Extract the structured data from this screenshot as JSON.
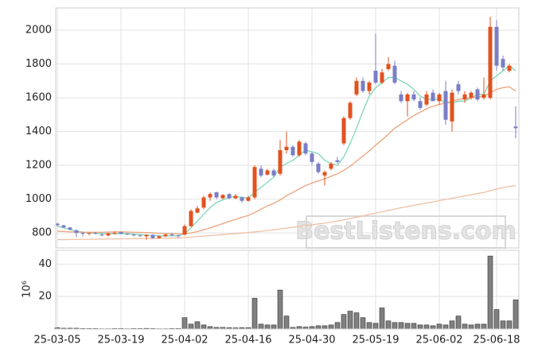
{
  "chart_data": {
    "type": "candlestick",
    "watermark": "BestListens.com",
    "categories": [
      "25-03-05",
      null,
      null,
      null,
      null,
      null,
      null,
      null,
      null,
      null,
      "25-03-19",
      null,
      null,
      null,
      null,
      null,
      null,
      null,
      null,
      null,
      "25-04-02",
      null,
      null,
      null,
      null,
      null,
      null,
      null,
      null,
      null,
      "25-04-16",
      null,
      null,
      null,
      null,
      null,
      null,
      null,
      null,
      null,
      "25-04-30",
      null,
      null,
      null,
      null,
      null,
      null,
      null,
      null,
      null,
      "25-05-19",
      null,
      null,
      null,
      null,
      null,
      null,
      null,
      null,
      null,
      "25-06-02",
      null,
      null,
      null,
      null,
      null,
      null,
      null,
      null,
      "25-06-18",
      null,
      null,
      null
    ],
    "open": [
      855,
      845,
      832,
      815,
      800,
      795,
      800,
      790,
      785,
      798,
      805,
      795,
      790,
      785,
      780,
      788,
      770,
      780,
      790,
      785,
      790,
      840,
      920,
      950,
      1010,
      1040,
      1005,
      1030,
      1005,
      1010,
      990,
      1010,
      1180,
      1145,
      1170,
      1150,
      1290,
      1310,
      1260,
      1330,
      1270,
      1210,
      1140,
      1180,
      1230,
      1330,
      1480,
      1620,
      1700,
      1640,
      1760,
      1690,
      1770,
      1790,
      1620,
      1580,
      1620,
      1580,
      1560,
      1630,
      1580,
      1640,
      1460,
      1680,
      1590,
      1600,
      1650,
      1600,
      1600,
      2020,
      1830,
      1760,
      1430
    ],
    "high": [
      860,
      848,
      835,
      822,
      805,
      800,
      805,
      800,
      800,
      810,
      808,
      800,
      795,
      790,
      792,
      792,
      785,
      795,
      800,
      790,
      850,
      940,
      960,
      1020,
      1040,
      1045,
      1030,
      1035,
      1030,
      1015,
      1020,
      1200,
      1200,
      1180,
      1180,
      1350,
      1400,
      1320,
      1350,
      1340,
      1280,
      1220,
      1170,
      1220,
      1250,
      1490,
      1580,
      1720,
      1720,
      1700,
      1980,
      1770,
      1840,
      1820,
      1640,
      1630,
      1640,
      1600,
      1640,
      1650,
      1630,
      1700,
      1650,
      1700,
      1640,
      1640,
      1660,
      1720,
      2080,
      2060,
      1850,
      1800,
      1550
    ],
    "low": [
      840,
      830,
      815,
      775,
      780,
      785,
      790,
      780,
      780,
      790,
      795,
      788,
      780,
      778,
      760,
      765,
      765,
      775,
      780,
      770,
      785,
      835,
      915,
      940,
      990,
      1000,
      1000,
      1000,
      1000,
      980,
      985,
      1000,
      1130,
      1140,
      1130,
      1140,
      1270,
      1250,
      1250,
      1260,
      1200,
      1150,
      1080,
      1170,
      1210,
      1320,
      1470,
      1610,
      1630,
      1620,
      1680,
      1680,
      1760,
      1680,
      1570,
      1490,
      1580,
      1530,
      1550,
      1580,
      1560,
      1440,
      1400,
      1620,
      1570,
      1590,
      1580,
      1590,
      1590,
      1760,
      1760,
      1750,
      1360
    ],
    "close": [
      845,
      832,
      820,
      800,
      795,
      800,
      795,
      785,
      798,
      800,
      795,
      790,
      785,
      782,
      788,
      770,
      780,
      790,
      785,
      780,
      840,
      930,
      945,
      1010,
      1030,
      1010,
      1025,
      1005,
      1020,
      990,
      1010,
      1190,
      1140,
      1170,
      1140,
      1290,
      1310,
      1260,
      1340,
      1270,
      1220,
      1160,
      1160,
      1210,
      1220,
      1480,
      1570,
      1700,
      1640,
      1690,
      1690,
      1750,
      1800,
      1690,
      1580,
      1620,
      1590,
      1540,
      1620,
      1580,
      1620,
      1470,
      1630,
      1640,
      1620,
      1630,
      1590,
      1620,
      2020,
      1790,
      1780,
      1790,
      1420
    ],
    "up_color": "#e2521f",
    "down_color": "#7a7ec6",
    "series": [
      {
        "color": "#7fd6b9",
        "values": [
          840,
          830,
          820,
          810,
          805,
          800,
          798,
          796,
          795,
          795,
          796,
          795,
          793,
          790,
          787,
          785,
          783,
          782,
          782,
          783,
          795,
          830,
          870,
          910,
          950,
          980,
          995,
          1010,
          1015,
          1010,
          1008,
          1040,
          1070,
          1100,
          1130,
          1190,
          1210,
          1230,
          1260,
          1290,
          1280,
          1270,
          1230,
          1210,
          1200,
          1250,
          1330,
          1420,
          1520,
          1610,
          1660,
          1690,
          1720,
          1720,
          1700,
          1680,
          1650,
          1610,
          1590,
          1590,
          1590,
          1570,
          1570,
          1580,
          1580,
          1600,
          1620,
          1620,
          1700,
          1730,
          1760,
          1790,
          1760
        ]
      },
      {
        "color": "#eda27c",
        "values": [
          810,
          808,
          806,
          805,
          804,
          804,
          804,
          804,
          805,
          806,
          806,
          805,
          804,
          803,
          802,
          800,
          798,
          796,
          795,
          794,
          795,
          800,
          808,
          818,
          830,
          842,
          855,
          868,
          880,
          892,
          903,
          920,
          940,
          960,
          975,
          995,
          1020,
          1040,
          1060,
          1080,
          1095,
          1108,
          1120,
          1135,
          1150,
          1170,
          1195,
          1225,
          1255,
          1285,
          1320,
          1350,
          1385,
          1420,
          1445,
          1470,
          1495,
          1515,
          1535,
          1550,
          1560,
          1570,
          1580,
          1590,
          1595,
          1600,
          1605,
          1610,
          1630,
          1650,
          1660,
          1665,
          1640
        ]
      },
      {
        "color": "#f0bfa3",
        "values": [
          760,
          760,
          761,
          761,
          762,
          762,
          763,
          763,
          764,
          764,
          765,
          765,
          766,
          766,
          767,
          767,
          768,
          768,
          769,
          770,
          772,
          775,
          778,
          781,
          784,
          787,
          790,
          793,
          796,
          799,
          802,
          806,
          810,
          814,
          818,
          823,
          828,
          833,
          838,
          843,
          848,
          853,
          858,
          864,
          870,
          877,
          885,
          893,
          901,
          909,
          917,
          925,
          933,
          941,
          949,
          956,
          963,
          970,
          977,
          984,
          991,
          998,
          1005,
          1012,
          1019,
          1026,
          1033,
          1040,
          1050,
          1060,
          1068,
          1075,
          1080
        ]
      }
    ],
    "ylim": [
      711,
      2132
    ],
    "yticks": [
      800,
      1000,
      1200,
      1400,
      1600,
      1800,
      2000
    ],
    "grid": true,
    "volume": {
      "unit_label": "10⁶",
      "color": "#808080",
      "values": [
        0.8,
        0.5,
        0.5,
        0.5,
        0.3,
        0.3,
        0.3,
        0.2,
        0.2,
        0.3,
        0.3,
        0.2,
        0.3,
        0.3,
        0.4,
        0.3,
        0.2,
        0.2,
        0.3,
        0.3,
        7,
        3,
        4.5,
        2.5,
        1.5,
        1,
        1,
        0.8,
        0.7,
        0.8,
        0.8,
        19,
        3,
        2.5,
        2.5,
        24,
        8,
        1,
        1.5,
        1.2,
        1.5,
        2,
        2,
        2.5,
        4,
        9,
        11,
        10,
        7,
        4,
        3.5,
        13,
        5,
        4,
        4,
        3.5,
        3.5,
        2.5,
        2.5,
        2,
        3,
        2.5,
        5,
        8,
        3,
        2.5,
        3,
        3,
        45,
        12,
        5,
        5,
        18
      ],
      "ylim": [
        0,
        48.5
      ],
      "yticks": [
        20,
        40
      ]
    }
  }
}
